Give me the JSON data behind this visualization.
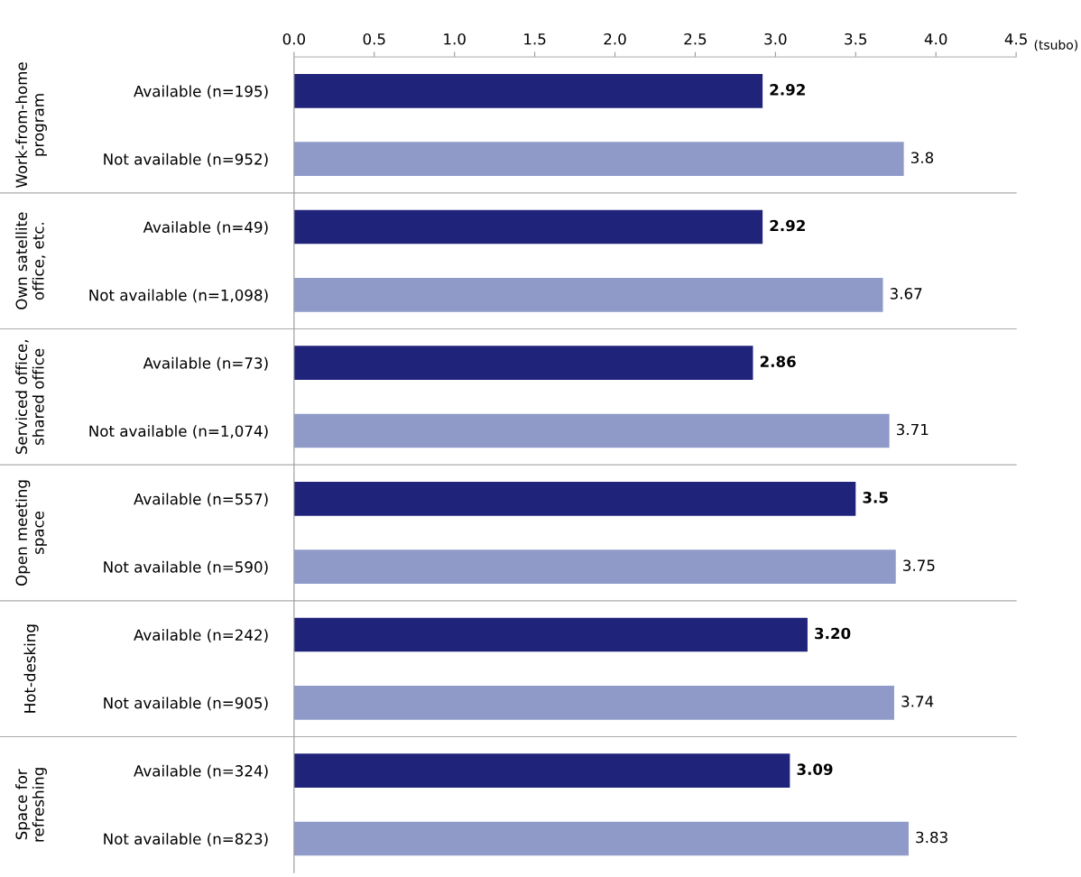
{
  "chart_data": {
    "type": "bar",
    "orientation": "horizontal",
    "xlabel": "(tsubo)",
    "categories": [
      "Available (n=195)",
      "Not available (n=952)",
      "Available (n=49)",
      "Not available (n=1,098)",
      "Available (n=73)",
      "Not available (n=1,074)",
      "Available (n=557)",
      "Not available (n=590)",
      "Available (n=242)",
      "Not available (n=905)",
      "Available (n=324)",
      "Not available (n=823)"
    ],
    "values": [
      2.92,
      3.8,
      2.92,
      3.67,
      2.86,
      3.71,
      3.5,
      3.75,
      3.2,
      3.74,
      3.09,
      3.83
    ],
    "value_labels": [
      "2.92",
      "3.8",
      "2.92",
      "3.67",
      "2.86",
      "3.71",
      "3.5",
      "3.75",
      "3.20",
      "3.74",
      "3.09",
      "3.83"
    ],
    "colors": [
      "#1f237a",
      "#8f9ac9",
      "#1f237a",
      "#8f9ac9",
      "#1f237a",
      "#8f9ac9",
      "#1f237a",
      "#8f9ac9",
      "#1f237a",
      "#8f9ac9",
      "#1f237a",
      "#8f9ac9"
    ],
    "xlim": [
      0,
      4.5
    ],
    "xticks": [
      {
        "value": 0,
        "label": "0.0"
      },
      {
        "value": 0.5,
        "label": "0.5"
      },
      {
        "value": 1,
        "label": "1.0"
      },
      {
        "value": 1.5,
        "label": "1.5"
      },
      {
        "value": 2,
        "label": "2.0"
      },
      {
        "value": 2.5,
        "label": "2.5"
      },
      {
        "value": 3,
        "label": "3.0"
      },
      {
        "value": 3.5,
        "label": "3.5"
      },
      {
        "value": 4,
        "label": "4.0"
      },
      {
        "value": 4.5,
        "label": "4.5"
      }
    ],
    "grid": false,
    "legend": false,
    "annotations": [
      "Work-from-home\nprogram",
      "Own satellite\noffice, etc.",
      "Serviced office,\nshared office",
      "Open meeting\nspace",
      "Hot-desking",
      "Space for\nrefreshing"
    ]
  }
}
